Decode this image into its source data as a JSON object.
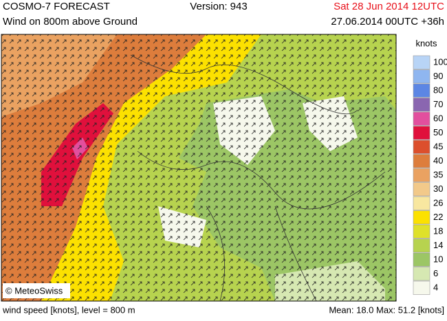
{
  "header": {
    "title": "COSMO-7 FORECAST",
    "version": "Version: 943",
    "valid": "Sat 28 Jun 2014 12UTC",
    "subtitle": "Wind on 800m above Ground",
    "run": "27.06.2014 00UTC +36h"
  },
  "legend": {
    "unit": "knots",
    "levels": [
      {
        "value": 100,
        "color": "#b8d4f6"
      },
      {
        "value": 90,
        "color": "#8fb6f0"
      },
      {
        "value": 80,
        "color": "#5c86e4"
      },
      {
        "value": 70,
        "color": "#8a66b0"
      },
      {
        "value": 60,
        "color": "#e24f9e"
      },
      {
        "value": 50,
        "color": "#e0103c"
      },
      {
        "value": 45,
        "color": "#dc4f2c"
      },
      {
        "value": 40,
        "color": "#dd7d3c"
      },
      {
        "value": 35,
        "color": "#eaa261"
      },
      {
        "value": 30,
        "color": "#f2c98a"
      },
      {
        "value": 26,
        "color": "#f8e7a0"
      },
      {
        "value": 22,
        "color": "#fce100"
      },
      {
        "value": 18,
        "color": "#dfe12a"
      },
      {
        "value": 14,
        "color": "#b7d34f"
      },
      {
        "value": 10,
        "color": "#9cc665"
      },
      {
        "value": 6,
        "color": "#d6e8b2"
      },
      {
        "value": 4,
        "color": "#f6f8ec"
      }
    ]
  },
  "credit": "© MeteoSwiss",
  "footer": {
    "left": "wind speed [knots], level = 800 m",
    "stats": "Mean:  18.0 Max:  51.2 [knots]"
  }
}
